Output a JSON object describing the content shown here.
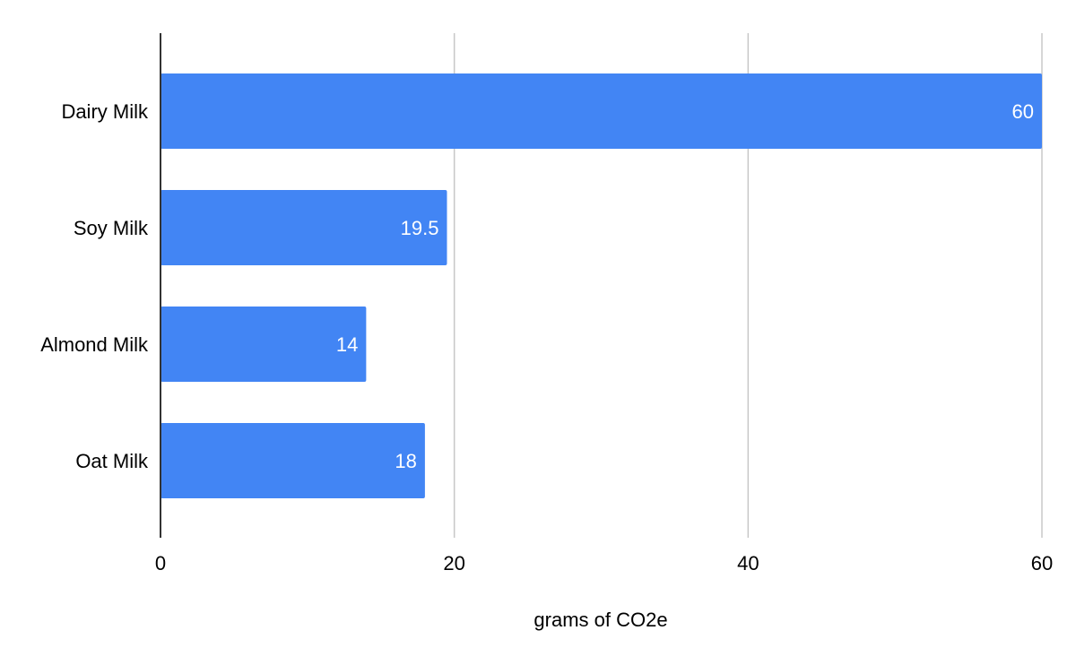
{
  "chart_data": {
    "type": "bar",
    "orientation": "horizontal",
    "categories": [
      "Dairy Milk",
      "Soy Milk",
      "Almond Milk",
      "Oat Milk"
    ],
    "values": [
      60,
      19.5,
      14,
      18
    ],
    "data_labels": [
      "60",
      "19.5",
      "14",
      "18"
    ],
    "xlabel": "grams of CO2e",
    "ylabel": "",
    "xlim": [
      0,
      60
    ],
    "x_ticks": [
      0,
      20,
      40,
      60
    ],
    "x_tick_labels": [
      "0",
      "20",
      "40",
      "60"
    ],
    "grid": true,
    "legend": "none",
    "colors": {
      "bar": "#4285f4",
      "grid": "#c8c8c8",
      "axis": "#333333",
      "data_label": "#ffffff",
      "text": "#000000"
    }
  }
}
